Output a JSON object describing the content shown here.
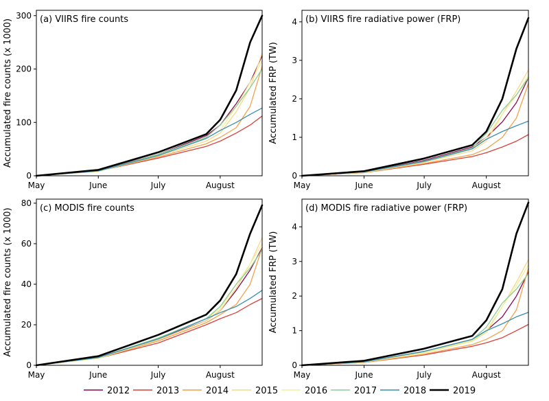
{
  "legend": {
    "placement": "bottom",
    "entries": [
      {
        "label": "2012",
        "color": "#8b0a50"
      },
      {
        "label": "2013",
        "color": "#d9413a"
      },
      {
        "label": "2014",
        "color": "#f4a14b"
      },
      {
        "label": "2015",
        "color": "#f7d888"
      },
      {
        "label": "2016",
        "color": "#eef29a"
      },
      {
        "label": "2017",
        "color": "#8fcc98"
      },
      {
        "label": "2018",
        "color": "#3a8fb0"
      },
      {
        "label": "2019",
        "color": "#000000"
      }
    ]
  },
  "chart_data": [
    {
      "type": "line",
      "title": "(a) VIIRS fire counts",
      "ylabel": "Accumulated fire counts (x 1000)",
      "xlabel": "",
      "x_ticks": [
        "May",
        "June",
        "July",
        "August"
      ],
      "x_tick_days": [
        0,
        31,
        61,
        92
      ],
      "xlim": [
        0,
        113
      ],
      "ylim": [
        0,
        310
      ],
      "y_ticks": [
        0,
        100,
        200,
        300
      ],
      "grid": false,
      "x": [
        0,
        31,
        61,
        85,
        92,
        100,
        107,
        113
      ],
      "series": [
        {
          "name": "2012",
          "color": "#8b0a50",
          "values": [
            0,
            10,
            40,
            75,
            95,
            135,
            175,
            225
          ]
        },
        {
          "name": "2013",
          "color": "#d9413a",
          "values": [
            0,
            9,
            33,
            55,
            65,
            80,
            95,
            112
          ]
        },
        {
          "name": "2014",
          "color": "#f4a14b",
          "values": [
            0,
            9,
            35,
            60,
            72,
            90,
            130,
            205
          ]
        },
        {
          "name": "2015",
          "color": "#f7d888",
          "values": [
            0,
            9,
            37,
            65,
            80,
            120,
            165,
            230
          ]
        },
        {
          "name": "2016",
          "color": "#eef29a",
          "values": [
            0,
            8,
            38,
            70,
            85,
            130,
            175,
            215
          ]
        },
        {
          "name": "2017",
          "color": "#8fcc98",
          "values": [
            0,
            9,
            40,
            72,
            95,
            130,
            165,
            200
          ]
        },
        {
          "name": "2018",
          "color": "#3a8fb0",
          "values": [
            0,
            9,
            38,
            70,
            85,
            100,
            115,
            127
          ]
        },
        {
          "name": "2019",
          "color": "#000000",
          "values": [
            0,
            11,
            44,
            78,
            105,
            160,
            250,
            300
          ]
        }
      ]
    },
    {
      "type": "line",
      "title": "(b) VIIRS fire radiative power (FRP)",
      "ylabel": "Accumulated FRP (TW)",
      "xlabel": "",
      "x_ticks": [
        "May",
        "June",
        "July",
        "August"
      ],
      "x_tick_days": [
        0,
        31,
        61,
        92
      ],
      "xlim": [
        0,
        113
      ],
      "ylim": [
        0,
        4.3
      ],
      "y_ticks": [
        0,
        1,
        2,
        3,
        4
      ],
      "grid": false,
      "x": [
        0,
        31,
        61,
        85,
        92,
        100,
        107,
        113
      ],
      "series": [
        {
          "name": "2012",
          "color": "#8b0a50",
          "values": [
            0,
            0.1,
            0.4,
            0.75,
            1.0,
            1.4,
            1.9,
            2.55
          ]
        },
        {
          "name": "2013",
          "color": "#d9413a",
          "values": [
            0,
            0.08,
            0.3,
            0.5,
            0.6,
            0.75,
            0.9,
            1.07
          ]
        },
        {
          "name": "2014",
          "color": "#f4a14b",
          "values": [
            0,
            0.08,
            0.32,
            0.55,
            0.7,
            1.0,
            1.5,
            2.4
          ]
        },
        {
          "name": "2015",
          "color": "#f7d888",
          "values": [
            0,
            0.09,
            0.35,
            0.65,
            0.9,
            1.6,
            2.2,
            2.75
          ]
        },
        {
          "name": "2016",
          "color": "#eef29a",
          "values": [
            0,
            0.09,
            0.36,
            0.7,
            1.0,
            1.6,
            2.1,
            2.6
          ]
        },
        {
          "name": "2017",
          "color": "#8fcc98",
          "values": [
            0,
            0.1,
            0.38,
            0.72,
            1.1,
            1.7,
            2.1,
            2.55
          ]
        },
        {
          "name": "2018",
          "color": "#3a8fb0",
          "values": [
            0,
            0.1,
            0.37,
            0.7,
            0.95,
            1.15,
            1.3,
            1.42
          ]
        },
        {
          "name": "2019",
          "color": "#000000",
          "values": [
            0,
            0.12,
            0.45,
            0.8,
            1.15,
            2.0,
            3.3,
            4.1
          ]
        }
      ]
    },
    {
      "type": "line",
      "title": "(c) MODIS fire counts",
      "ylabel": "Accumulated fire counts (x 1000)",
      "xlabel": "",
      "x_ticks": [
        "May",
        "June",
        "July",
        "August"
      ],
      "x_tick_days": [
        0,
        31,
        61,
        92
      ],
      "xlim": [
        0,
        113
      ],
      "ylim": [
        0,
        82
      ],
      "y_ticks": [
        0,
        20,
        40,
        60,
        80
      ],
      "grid": false,
      "x": [
        0,
        31,
        61,
        85,
        92,
        100,
        107,
        113
      ],
      "series": [
        {
          "name": "2012",
          "color": "#8b0a50",
          "values": [
            0,
            4,
            13,
            22,
            27,
            37,
            47,
            58
          ]
        },
        {
          "name": "2013",
          "color": "#d9413a",
          "values": [
            0,
            3.5,
            11,
            20,
            23,
            26,
            30,
            33
          ]
        },
        {
          "name": "2014",
          "color": "#f4a14b",
          "values": [
            0,
            3.5,
            12,
            21,
            25,
            30,
            40,
            58
          ]
        },
        {
          "name": "2015",
          "color": "#f7d888",
          "values": [
            0,
            3.6,
            12.5,
            22,
            27,
            38,
            50,
            63
          ]
        },
        {
          "name": "2016",
          "color": "#eef29a",
          "values": [
            0,
            3.4,
            13,
            23,
            28,
            40,
            50,
            60
          ]
        },
        {
          "name": "2017",
          "color": "#8fcc98",
          "values": [
            0,
            3.8,
            13.5,
            23,
            29,
            40,
            48,
            57
          ]
        },
        {
          "name": "2018",
          "color": "#3a8fb0",
          "values": [
            0,
            3.8,
            13,
            23,
            26,
            29,
            33,
            37
          ]
        },
        {
          "name": "2019",
          "color": "#000000",
          "values": [
            0,
            4.5,
            15,
            25,
            32,
            45,
            65,
            79
          ]
        }
      ]
    },
    {
      "type": "line",
      "title": "(d) MODIS fire radiative power (FRP)",
      "ylabel": "Accumulated FRP (TW)",
      "xlabel": "",
      "x_ticks": [
        "May",
        "June",
        "July",
        "August"
      ],
      "x_tick_days": [
        0,
        31,
        61,
        92
      ],
      "xlim": [
        0,
        113
      ],
      "ylim": [
        0,
        4.8
      ],
      "y_ticks": [
        0,
        1,
        2,
        3,
        4
      ],
      "grid": false,
      "x": [
        0,
        31,
        61,
        85,
        92,
        100,
        107,
        113
      ],
      "series": [
        {
          "name": "2012",
          "color": "#8b0a50",
          "values": [
            0,
            0.1,
            0.4,
            0.75,
            1.0,
            1.4,
            2.0,
            2.7
          ]
        },
        {
          "name": "2013",
          "color": "#d9413a",
          "values": [
            0,
            0.08,
            0.3,
            0.55,
            0.65,
            0.8,
            1.0,
            1.18
          ]
        },
        {
          "name": "2014",
          "color": "#f4a14b",
          "values": [
            0,
            0.08,
            0.32,
            0.6,
            0.75,
            1.0,
            1.6,
            2.8
          ]
        },
        {
          "name": "2015",
          "color": "#f7d888",
          "values": [
            0,
            0.09,
            0.36,
            0.7,
            0.95,
            1.7,
            2.4,
            3.05
          ]
        },
        {
          "name": "2016",
          "color": "#eef29a",
          "values": [
            0,
            0.09,
            0.37,
            0.72,
            1.0,
            1.7,
            2.3,
            2.9
          ]
        },
        {
          "name": "2017",
          "color": "#8fcc98",
          "values": [
            0,
            0.1,
            0.4,
            0.75,
            1.1,
            1.8,
            2.2,
            2.65
          ]
        },
        {
          "name": "2018",
          "color": "#3a8fb0",
          "values": [
            0,
            0.1,
            0.4,
            0.75,
            1.0,
            1.2,
            1.4,
            1.53
          ]
        },
        {
          "name": "2019",
          "color": "#000000",
          "values": [
            0,
            0.13,
            0.48,
            0.85,
            1.3,
            2.2,
            3.8,
            4.7
          ]
        }
      ]
    }
  ]
}
